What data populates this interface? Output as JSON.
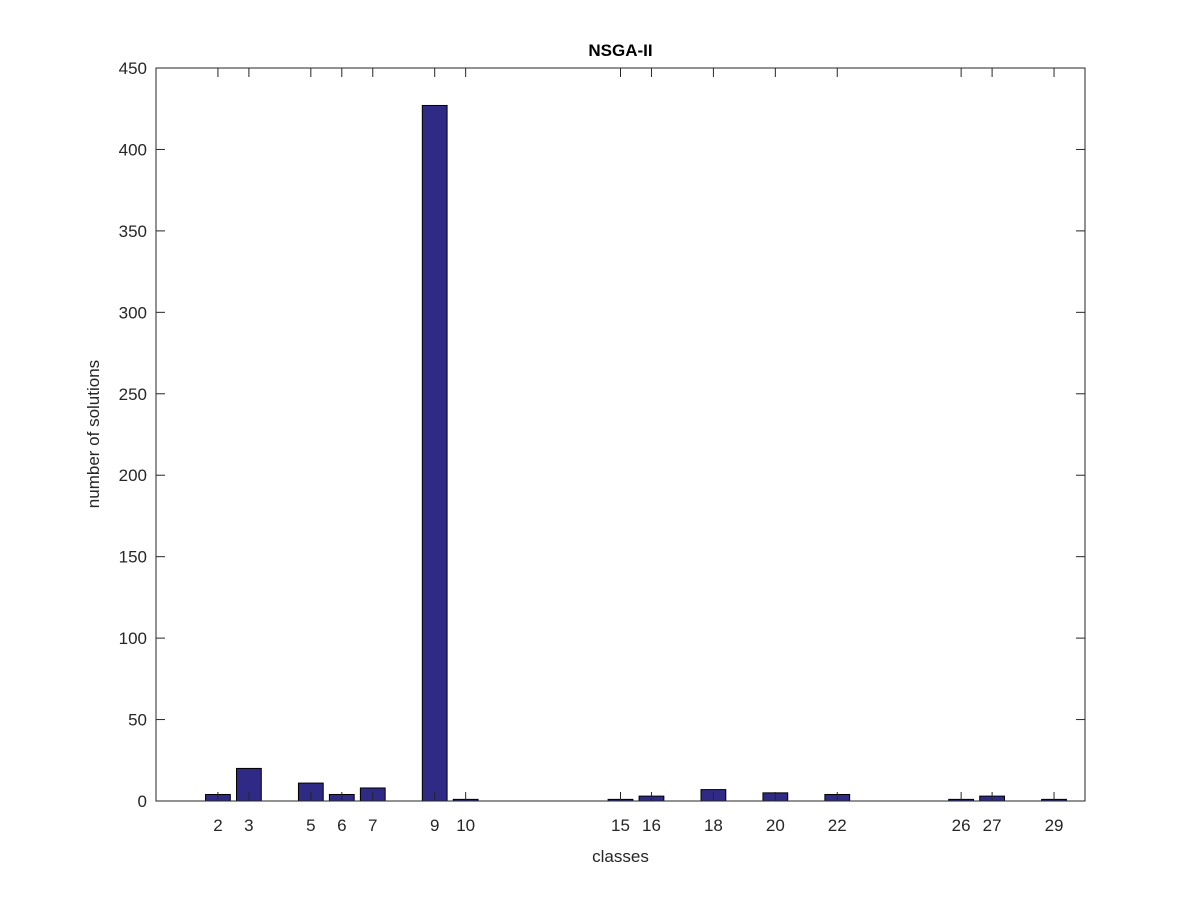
{
  "chart_data": {
    "type": "bar",
    "title": "NSGA-II",
    "xlabel": "classes",
    "ylabel": "number of solutions",
    "x": [
      2,
      3,
      5,
      6,
      7,
      9,
      10,
      15,
      16,
      18,
      20,
      22,
      26,
      27,
      29
    ],
    "values": [
      4,
      20,
      11,
      4,
      8,
      427,
      1,
      1,
      3,
      7,
      5,
      4,
      1,
      3,
      1
    ],
    "xlim": [
      0,
      30
    ],
    "ylim": [
      0,
      450
    ],
    "yticks": [
      0,
      50,
      100,
      150,
      200,
      250,
      300,
      350,
      400,
      450
    ],
    "bar_color": "#2e2a85",
    "edge_color": "#000000",
    "grid": false,
    "box": true
  }
}
